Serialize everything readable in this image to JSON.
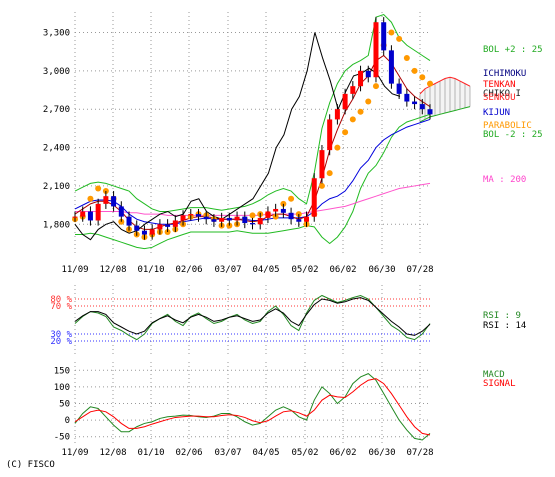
{
  "copyright": "(C) FISCO",
  "chart_data": [
    {
      "type": "line",
      "panel": "price",
      "candlestick": true,
      "x_labels": [
        "11/09",
        "12/08",
        "01/10",
        "02/06",
        "03/07",
        "04/05",
        "05/02",
        "06/02",
        "06/30",
        "07/28"
      ],
      "y_ticks": [
        1800,
        2100,
        2400,
        2700,
        3000,
        3300
      ],
      "y_tick_labels": [
        "1,800",
        "2,100",
        "2,400",
        "2,700",
        "3,000",
        "3,300"
      ],
      "ylim": [
        1560,
        3460
      ],
      "grid": true,
      "legend_placement": "right",
      "legend": [
        {
          "label": "BOL +2 : 25",
          "color": "#22aa22"
        },
        {
          "label": "ICHIMOKU",
          "color": "#000080"
        },
        {
          "label": "TENKAN",
          "color": "#ff0000"
        },
        {
          "label": "CHIKO I",
          "color": "#222222"
        },
        {
          "label": "SENKOU",
          "color": "#ff2222"
        },
        {
          "label": "KIJUN",
          "color": "#0000cc"
        },
        {
          "label": "PARABOLIC",
          "color": "#ff9900"
        },
        {
          "label": "BOL -2 : 25",
          "color": "#22aa22"
        },
        {
          "label": "MA : 200",
          "color": "#ff44cc"
        }
      ],
      "series": [
        {
          "name": "Close",
          "color": "#cc0000",
          "values": [
            1860,
            1900,
            1830,
            1960,
            2020,
            1940,
            1860,
            1790,
            1750,
            1720,
            1760,
            1800,
            1780,
            1830,
            1870,
            1880,
            1860,
            1840,
            1820,
            1850,
            1830,
            1860,
            1810,
            1800,
            1850,
            1900,
            1920,
            1890,
            1840,
            1820,
            1860,
            2160,
            2380,
            2620,
            2700,
            2820,
            2880,
            3000,
            2950,
            3380,
            3160,
            2900,
            2820,
            2760,
            2740,
            2700,
            2660
          ]
        },
        {
          "name": "BOL +2 : 25",
          "color": "#22bb22",
          "values": [
            2060,
            2090,
            2120,
            2130,
            2120,
            2100,
            2080,
            2060,
            2000,
            1960,
            1920,
            1900,
            1900,
            1910,
            1920,
            1930,
            1930,
            1930,
            1920,
            1910,
            1920,
            1930,
            1940,
            1960,
            1990,
            2030,
            2060,
            2080,
            2060,
            2000,
            1960,
            2200,
            2550,
            2750,
            2900,
            3000,
            3050,
            3080,
            3120,
            3420,
            3440,
            3380,
            3260,
            3200,
            3160,
            3120,
            3080
          ]
        },
        {
          "name": "BOL -2 : 25",
          "color": "#22bb22",
          "values": [
            1720,
            1720,
            1730,
            1720,
            1700,
            1680,
            1660,
            1640,
            1620,
            1610,
            1620,
            1650,
            1680,
            1700,
            1720,
            1740,
            1740,
            1740,
            1740,
            1740,
            1740,
            1750,
            1740,
            1730,
            1730,
            1730,
            1740,
            1750,
            1760,
            1770,
            1790,
            1780,
            1700,
            1650,
            1700,
            1780,
            1900,
            2080,
            2200,
            2260,
            2360,
            2480,
            2560,
            2600,
            2620,
            2640,
            2660
          ]
        },
        {
          "name": "MA : 200",
          "color": "#ff55cc",
          "values": [
            1900,
            1900,
            1900,
            1900,
            1900,
            1900,
            1900,
            1890,
            1890,
            1880,
            1880,
            1880,
            1870,
            1870,
            1870,
            1870,
            1870,
            1870,
            1870,
            1870,
            1870,
            1870,
            1870,
            1870,
            1870,
            1880,
            1880,
            1880,
            1880,
            1880,
            1890,
            1900,
            1910,
            1920,
            1930,
            1940,
            1960,
            1980,
            2000,
            2020,
            2040,
            2060,
            2080,
            2090,
            2100,
            2110,
            2120
          ]
        },
        {
          "name": "KIJUN",
          "color": "#0000dd",
          "values": [
            1920,
            1950,
            1980,
            1990,
            1990,
            1980,
            1940,
            1880,
            1840,
            1820,
            1810,
            1800,
            1800,
            1800,
            1820,
            1830,
            1840,
            1850,
            1840,
            1840,
            1840,
            1840,
            1840,
            1830,
            1830,
            1840,
            1850,
            1850,
            1850,
            1850,
            1860,
            1900,
            1960,
            2000,
            2020,
            2060,
            2140,
            2240,
            2300,
            2400,
            2460,
            2500,
            2530,
            2560,
            2580,
            2600,
            2620
          ]
        },
        {
          "name": "TENKAN",
          "color": "#aa0000",
          "values": [
            1880,
            1920,
            1960,
            1980,
            1980,
            1950,
            1900,
            1830,
            1780,
            1760,
            1760,
            1780,
            1800,
            1810,
            1830,
            1850,
            1860,
            1860,
            1850,
            1840,
            1840,
            1840,
            1830,
            1820,
            1830,
            1860,
            1880,
            1880,
            1860,
            1840,
            1860,
            1980,
            2160,
            2380,
            2540,
            2680,
            2780,
            2900,
            2960,
            3080,
            3120,
            3060,
            2960,
            2860,
            2800,
            2760,
            2720
          ]
        },
        {
          "name": "CHIKO I",
          "color": "#000000",
          "values": [
            1800,
            1720,
            1680,
            1760,
            1800,
            1820,
            1760,
            1730,
            1750,
            1800,
            1840,
            1880,
            1900,
            1860,
            1880,
            1980,
            2000,
            1900,
            1860,
            1840,
            1880,
            1920,
            1960,
            2000,
            2100,
            2200,
            2400,
            2500,
            2700,
            2800,
            3000,
            3300,
            3100,
            2920,
            2700,
            2840,
            2960,
            2980,
            3020,
            2980,
            2880,
            2820,
            2800
          ]
        },
        {
          "name": "PARABOLIC",
          "color": "#ff9900",
          "values": [
            1840,
            1860,
            2000,
            2080,
            2060,
            2000,
            1820,
            1760,
            1720,
            1700,
            1720,
            1740,
            1740,
            1760,
            1800,
            1860,
            1880,
            1870,
            1840,
            1790,
            1790,
            1800,
            1840,
            1870,
            1880,
            1880,
            1860,
            1960,
            2000,
            1880,
            1800,
            1880,
            2100,
            2200,
            2400,
            2520,
            2620,
            2680,
            2760,
            2880,
            3200,
            3300,
            3250,
            3100,
            3000,
            2950,
            2900
          ]
        }
      ],
      "cloud": {
        "name": "SENKOU",
        "upper": [
          2820,
          2860,
          2880,
          2900,
          2920,
          2940,
          2950,
          2940,
          2920,
          2900,
          2880
        ],
        "lower": [
          2600,
          2620,
          2640,
          2650,
          2660,
          2670,
          2680,
          2690,
          2700,
          2710,
          2720
        ]
      }
    },
    {
      "type": "line",
      "panel": "rsi",
      "x_labels": [],
      "ylim": [
        0,
        100
      ],
      "y_tick_labels": [
        "80 %",
        "70 %",
        "30 %",
        "20 %"
      ],
      "y_ticks": [
        80,
        70,
        30,
        20
      ],
      "legend_placement": "right",
      "legend": [
        {
          "label": "RSI : 9",
          "color": "#228822"
        },
        {
          "label": "RSI : 14",
          "color": "#000000"
        }
      ],
      "series": [
        {
          "name": "RSI : 9",
          "color": "#228822",
          "values": [
            45,
            55,
            62,
            60,
            55,
            40,
            35,
            28,
            22,
            30,
            45,
            52,
            58,
            48,
            42,
            55,
            60,
            52,
            45,
            48,
            54,
            58,
            50,
            45,
            48,
            62,
            70,
            58,
            42,
            35,
            60,
            78,
            85,
            80,
            75,
            78,
            82,
            85,
            80,
            68,
            55,
            42,
            35,
            25,
            22,
            30,
            45
          ]
        },
        {
          "name": "RSI : 14",
          "color": "#000000",
          "values": [
            48,
            56,
            62,
            62,
            58,
            46,
            40,
            34,
            30,
            34,
            46,
            52,
            56,
            50,
            46,
            54,
            58,
            54,
            48,
            50,
            54,
            56,
            52,
            48,
            50,
            60,
            66,
            60,
            48,
            42,
            58,
            72,
            80,
            78,
            74,
            76,
            80,
            82,
            78,
            68,
            58,
            48,
            40,
            30,
            28,
            34,
            44
          ]
        }
      ]
    },
    {
      "type": "line",
      "panel": "macd",
      "x_labels": [
        "11/09",
        "12/08",
        "01/10",
        "02/06",
        "03/07",
        "04/05",
        "05/02",
        "06/02",
        "06/30",
        "07/28"
      ],
      "y_ticks": [
        150,
        100,
        50,
        0,
        -50
      ],
      "y_tick_labels": [
        "150",
        "100",
        "50",
        "0",
        "-50"
      ],
      "ylim": [
        -75,
        175
      ],
      "legend_placement": "right",
      "legend": [
        {
          "label": "MACD",
          "color": "#228822"
        },
        {
          "label": "SIGNAL",
          "color": "#ff0000"
        }
      ],
      "series": [
        {
          "name": "MACD",
          "color": "#228822",
          "values": [
            -10,
            20,
            40,
            35,
            10,
            -15,
            -35,
            -35,
            -20,
            -10,
            -5,
            5,
            10,
            12,
            15,
            14,
            10,
            8,
            12,
            20,
            20,
            10,
            -5,
            -15,
            -10,
            10,
            30,
            40,
            30,
            10,
            0,
            60,
            100,
            80,
            50,
            70,
            110,
            130,
            140,
            120,
            80,
            40,
            0,
            -30,
            -55,
            -60,
            -40
          ]
        },
        {
          "name": "SIGNAL",
          "color": "#ff0000",
          "values": [
            -5,
            10,
            25,
            30,
            25,
            10,
            -10,
            -25,
            -25,
            -20,
            -12,
            -5,
            2,
            8,
            10,
            12,
            12,
            10,
            10,
            14,
            16,
            14,
            8,
            -2,
            -8,
            -2,
            12,
            25,
            28,
            22,
            12,
            30,
            60,
            75,
            70,
            68,
            85,
            105,
            120,
            125,
            110,
            80,
            45,
            10,
            -20,
            -40,
            -45
          ]
        }
      ]
    }
  ]
}
